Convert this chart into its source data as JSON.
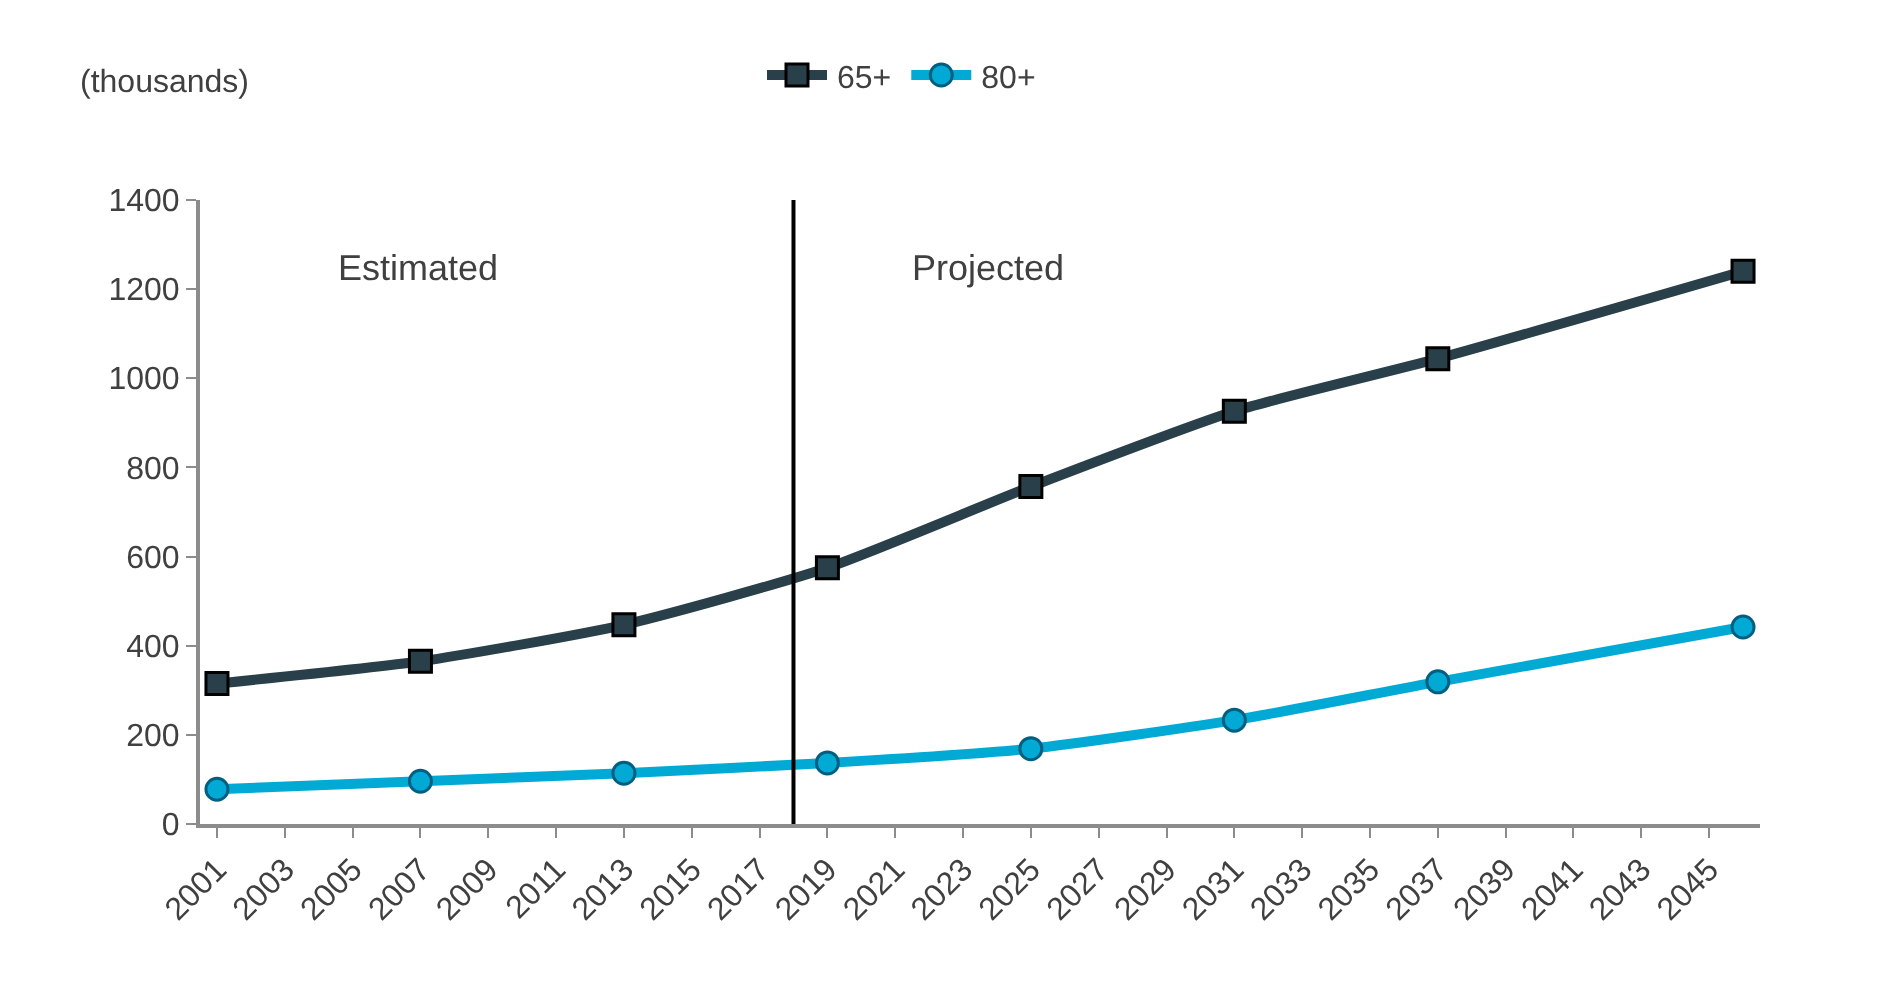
{
  "chart_data": {
    "type": "line",
    "ylabel": "(thousands)",
    "annotations": [
      "Estimated",
      "Projected"
    ],
    "xlim": [
      2000.5,
      2046.5
    ],
    "xticks": [
      2001,
      2003,
      2005,
      2007,
      2009,
      2011,
      2013,
      2015,
      2017,
      2019,
      2021,
      2023,
      2025,
      2027,
      2029,
      2031,
      2033,
      2035,
      2037,
      2039,
      2041,
      2043,
      2045
    ],
    "ylim": [
      0,
      1400
    ],
    "yticks": [
      0,
      200,
      400,
      600,
      800,
      1000,
      1200,
      1400
    ],
    "x": [
      2001,
      2007,
      2013,
      2019,
      2025,
      2031,
      2037,
      2046
    ],
    "series": [
      {
        "name": "65+",
        "color": "#29404a",
        "marker": "square",
        "values": [
          315,
          365,
          447,
          575,
          757,
          926,
          1044,
          1240
        ]
      },
      {
        "name": "80+",
        "color": "#00aad4",
        "marker": "circle",
        "values": [
          78,
          96,
          114,
          137,
          169,
          233,
          319,
          442
        ]
      }
    ],
    "ref_lines": [
      {
        "axis": "x",
        "value": 2018,
        "color": "#000000"
      }
    ],
    "legend": "top",
    "line_style": "solid"
  }
}
